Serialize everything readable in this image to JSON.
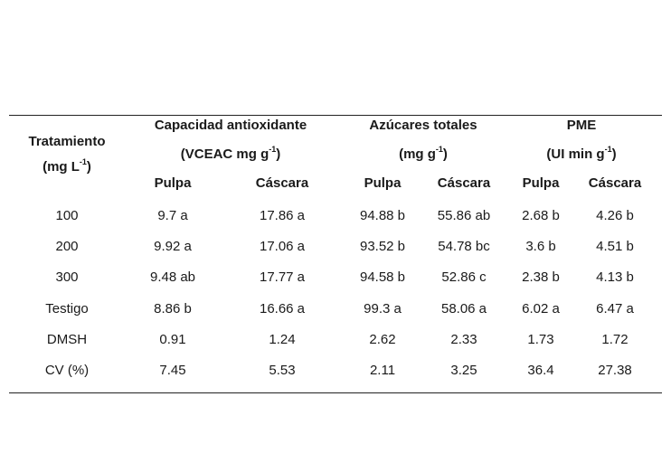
{
  "table": {
    "header": {
      "tratamiento_line1": "Tratamiento",
      "tratamiento_line2_pre": "(mg L",
      "tratamiento_line2_sup": "-1",
      "tratamiento_line2_post": ")",
      "groups": [
        {
          "line1": "Capacidad antioxidante",
          "line2_pre": "(VCEAC mg g",
          "line2_sup": "-1",
          "line2_post": ")"
        },
        {
          "line1": "Azúcares totales",
          "line2_pre": "(mg g",
          "line2_sup": "-1",
          "line2_post": ")"
        },
        {
          "line1": "PME",
          "line2_pre": "(UI min g",
          "line2_sup": "-1",
          "line2_post": ")"
        }
      ],
      "sub": [
        "Pulpa",
        "Cáscara",
        "Pulpa",
        "Cáscara",
        "Pulpa",
        "Cáscara"
      ]
    },
    "rows": [
      {
        "label": "100",
        "values": [
          "9.7 a",
          "17.86 a",
          "94.88 b",
          "55.86 ab",
          "2.68 b",
          "4.26 b"
        ]
      },
      {
        "label": "200",
        "values": [
          "9.92 a",
          "17.06 a",
          "93.52 b",
          "54.78 bc",
          "3.6 b",
          "4.51 b"
        ]
      },
      {
        "label": "300",
        "values": [
          "9.48 ab",
          "17.77 a",
          "94.58 b",
          "52.86 c",
          "2.38 b",
          "4.13 b"
        ]
      },
      {
        "label": "Testigo",
        "values": [
          "8.86 b",
          "16.66 a",
          "99.3 a",
          "58.06 a",
          "6.02 a",
          "6.47 a"
        ]
      },
      {
        "label": "DMSH",
        "values": [
          "0.91",
          "1.24",
          "2.62",
          "2.33",
          "1.73",
          "1.72"
        ]
      },
      {
        "label": "CV (%)",
        "values": [
          "7.45",
          "5.53",
          "2.11",
          "3.25",
          "36.4",
          "27.38"
        ]
      }
    ]
  }
}
